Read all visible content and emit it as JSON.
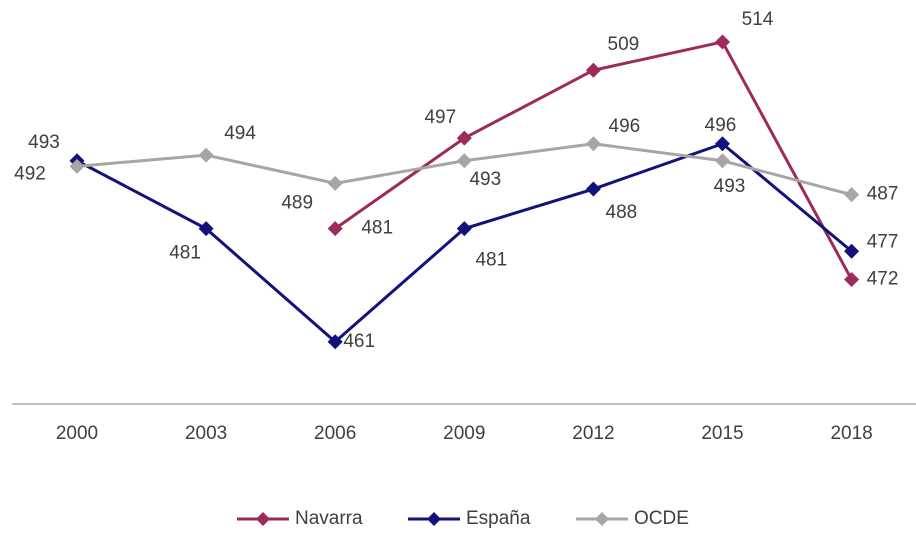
{
  "chart_data": {
    "type": "line",
    "categories": [
      "2000",
      "2003",
      "2006",
      "2009",
      "2012",
      "2015",
      "2018"
    ],
    "series": [
      {
        "name": "Navarra",
        "color": "#9c2a5b",
        "values": [
          null,
          null,
          481,
          497,
          509,
          514,
          472
        ]
      },
      {
        "name": "España",
        "color": "#12127a",
        "values": [
          493,
          481,
          461,
          481,
          488,
          496,
          477
        ]
      },
      {
        "name": "OCDE",
        "color": "#a6a6a6",
        "values": [
          492,
          494,
          489,
          493,
          496,
          493,
          487
        ]
      }
    ],
    "ylim": [
      450,
      520
    ],
    "data_labels": true,
    "legend": "bottom"
  }
}
